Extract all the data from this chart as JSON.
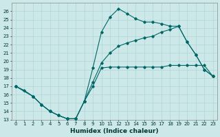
{
  "xlabel": "Humidex (Indice chaleur)",
  "background_color": "#cce8e8",
  "grid_color": "#b0d4d4",
  "line_color": "#006666",
  "xlim": [
    -0.5,
    23.5
  ],
  "ylim": [
    13,
    27
  ],
  "xticks": [
    0,
    1,
    2,
    3,
    4,
    5,
    6,
    7,
    8,
    9,
    10,
    11,
    12,
    13,
    14,
    15,
    16,
    17,
    18,
    19,
    20,
    21,
    22,
    23
  ],
  "yticks": [
    13,
    14,
    15,
    16,
    17,
    18,
    19,
    20,
    21,
    22,
    23,
    24,
    25,
    26
  ],
  "line1_x": [
    0,
    1,
    2,
    3,
    4,
    5,
    6,
    7,
    8,
    9,
    10,
    11,
    12,
    13,
    14,
    15,
    16,
    17,
    18,
    19,
    20,
    21,
    22,
    23
  ],
  "line1_y": [
    17.0,
    16.5,
    15.8,
    14.8,
    14.0,
    13.5,
    13.1,
    13.1,
    15.2,
    17.0,
    19.2,
    19.3,
    19.3,
    19.3,
    19.3,
    19.3,
    19.3,
    19.3,
    19.5,
    19.5,
    19.5,
    19.5,
    19.5,
    18.2
  ],
  "line2_x": [
    0,
    2,
    3,
    4,
    5,
    6,
    7,
    8,
    9,
    10,
    11,
    12,
    13,
    14,
    15,
    16,
    17,
    18,
    19,
    20,
    21,
    22,
    23
  ],
  "line2_y": [
    17.0,
    15.8,
    14.8,
    14.0,
    13.5,
    13.1,
    13.1,
    15.2,
    19.2,
    23.5,
    25.3,
    26.3,
    25.7,
    25.1,
    24.7,
    24.7,
    24.5,
    24.2,
    24.2,
    22.3,
    20.8,
    19.0,
    18.2
  ],
  "line3_x": [
    0,
    2,
    3,
    4,
    5,
    6,
    7,
    8,
    9,
    10,
    11,
    12,
    13,
    14,
    15,
    16,
    17,
    18,
    19,
    20,
    21,
    22,
    23
  ],
  "line3_y": [
    17.0,
    15.8,
    14.8,
    14.0,
    13.5,
    13.1,
    13.1,
    15.2,
    17.5,
    19.8,
    21.0,
    21.8,
    22.2,
    22.5,
    22.8,
    23.0,
    23.5,
    23.8,
    24.2,
    22.3,
    20.8,
    19.0,
    18.2
  ]
}
